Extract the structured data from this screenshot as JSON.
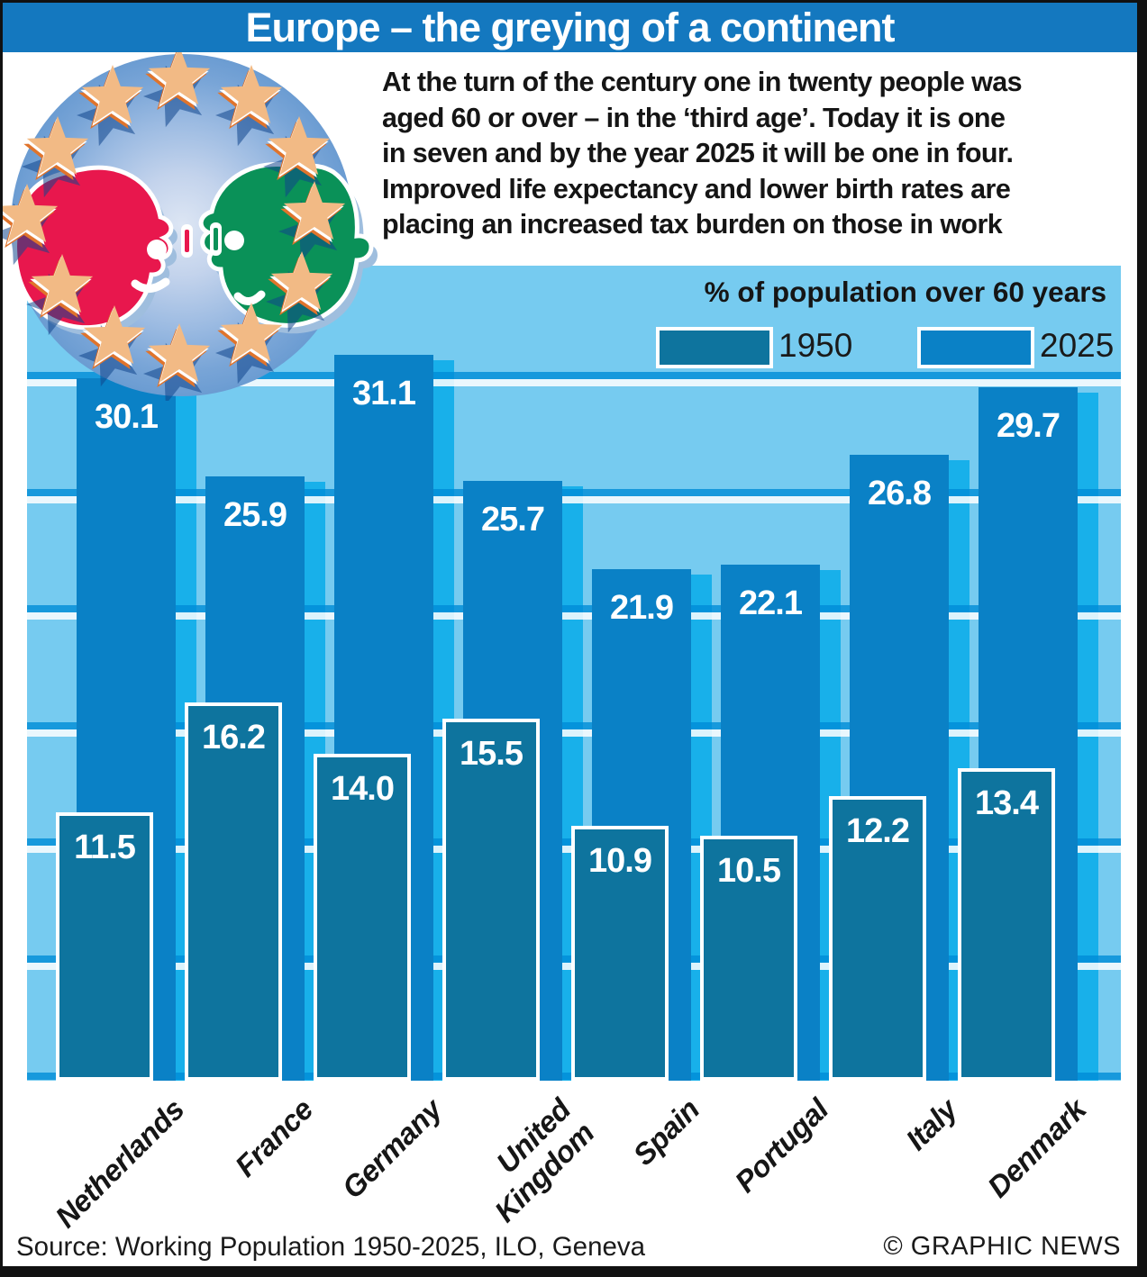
{
  "title": "Europe – the greying of a continent",
  "intro_lines": [
    "At the turn of the century one in twenty people was",
    "aged 60 or over – in the ‘third age’. Today it is one",
    "in seven and by the year 2025 it will be one in four.",
    "Improved life expectancy and lower birth rates are",
    "placing an increased tax burden on those in work"
  ],
  "legend": {
    "title": "% of population over 60 years",
    "items": [
      {
        "label": "1950",
        "color": "#0e749e"
      },
      {
        "label": "2025",
        "color": "#0a81c6"
      }
    ]
  },
  "chart_data": {
    "type": "bar",
    "categories": [
      "Netherlands",
      "France",
      "Germany",
      "United\nKingdom",
      "Spain",
      "Portugal",
      "Italy",
      "Denmark"
    ],
    "series": [
      {
        "name": "1950",
        "values": [
          11.5,
          16.2,
          14.0,
          15.5,
          10.9,
          10.5,
          12.2,
          13.4
        ],
        "color": "#0e749e"
      },
      {
        "name": "2025",
        "values": [
          30.1,
          25.9,
          31.1,
          25.7,
          21.9,
          22.1,
          26.8,
          29.7
        ],
        "color": "#0a81c6"
      }
    ],
    "title": "% of population over 60 years",
    "xlabel": "",
    "ylabel": "% of population over 60 years",
    "ylim": [
      0,
      32.5
    ],
    "gridline_interval": 5,
    "grid": true,
    "legend_position": "top-right",
    "value_labels": true
  },
  "illustration": {
    "description": "Two profile faces (red and green) looking at each other inside a ring of twelve EU stars on a blue radial halo"
  },
  "footer": {
    "source": "Source: Working Population 1950-2025, ILO, Geneva",
    "credit": "© GRAPHIC NEWS"
  },
  "colors": {
    "title_bar": "#1478bf",
    "panel_bg": "#76cbf0",
    "grid_blue": "rgba(0,140,215,0.8)",
    "grid_white": "rgba(255,255,255,0.85)",
    "bar_1950": "#0e749e",
    "bar_2025": "#0a81c6",
    "bar_shadow": "#18b0ea",
    "star_gold": "#f2ba85",
    "star_orange": "#e0742c",
    "face_red": "#e8174d",
    "face_green": "#0a9158"
  }
}
